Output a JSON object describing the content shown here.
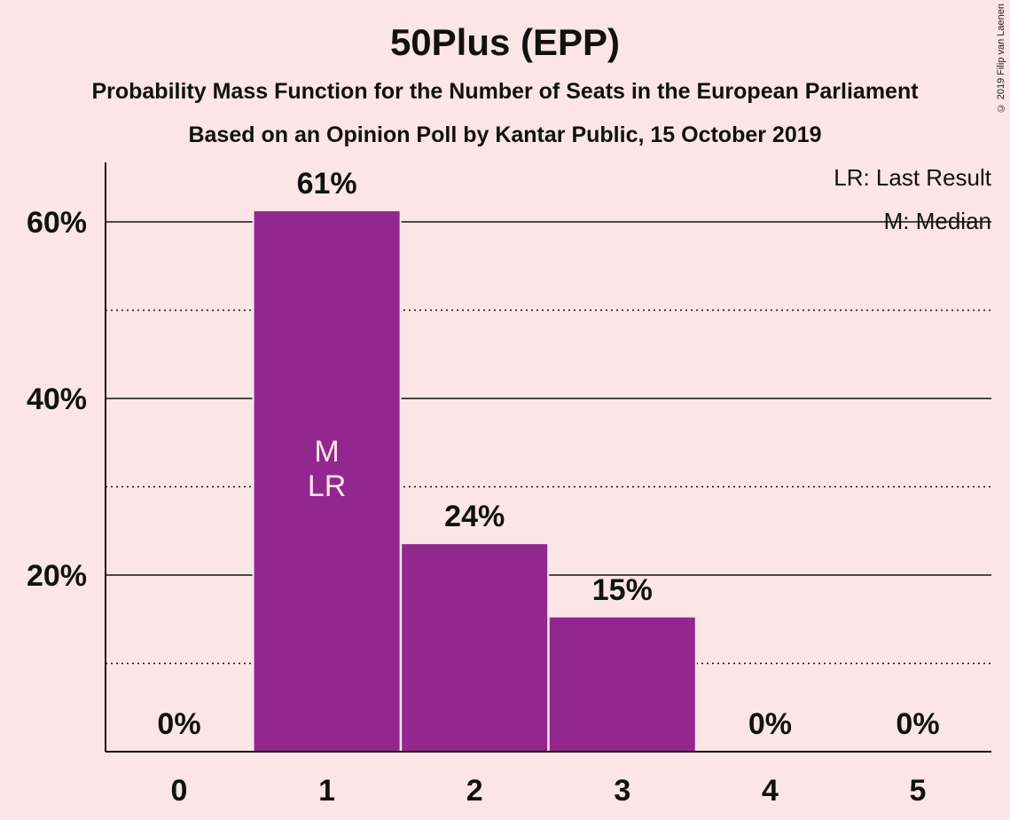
{
  "title": "50Plus (EPP)",
  "subtitle": "Probability Mass Function for the Number of Seats in the European Parliament",
  "subtitle2": "Based on an Opinion Poll by Kantar Public, 15 October 2019",
  "copyright": "© 2019 Filip van Laenen",
  "legend": {
    "last_result": "LR: Last Result",
    "median": "M: Median"
  },
  "colors": {
    "bar": "#92278f",
    "background": "#fce5e6",
    "marker_text": "#fce5e6"
  },
  "chart_data": {
    "type": "bar",
    "categories": [
      "0",
      "1",
      "2",
      "3",
      "4",
      "5"
    ],
    "values": [
      0,
      61.2,
      23.5,
      15.2,
      0,
      0
    ],
    "data_labels": [
      "0%",
      "61%",
      "24%",
      "15%",
      "0%",
      "0%"
    ],
    "ylim": [
      0,
      67
    ],
    "major_ticks": [
      20,
      40,
      60
    ],
    "major_tick_labels": [
      "20%",
      "40%",
      "60%"
    ],
    "minor_ticks": [
      10,
      30,
      50
    ],
    "median_category": "1",
    "last_result_category": "1",
    "median_marker": "M",
    "last_result_marker": "LR",
    "legend_position": "top-right",
    "grid": true
  }
}
